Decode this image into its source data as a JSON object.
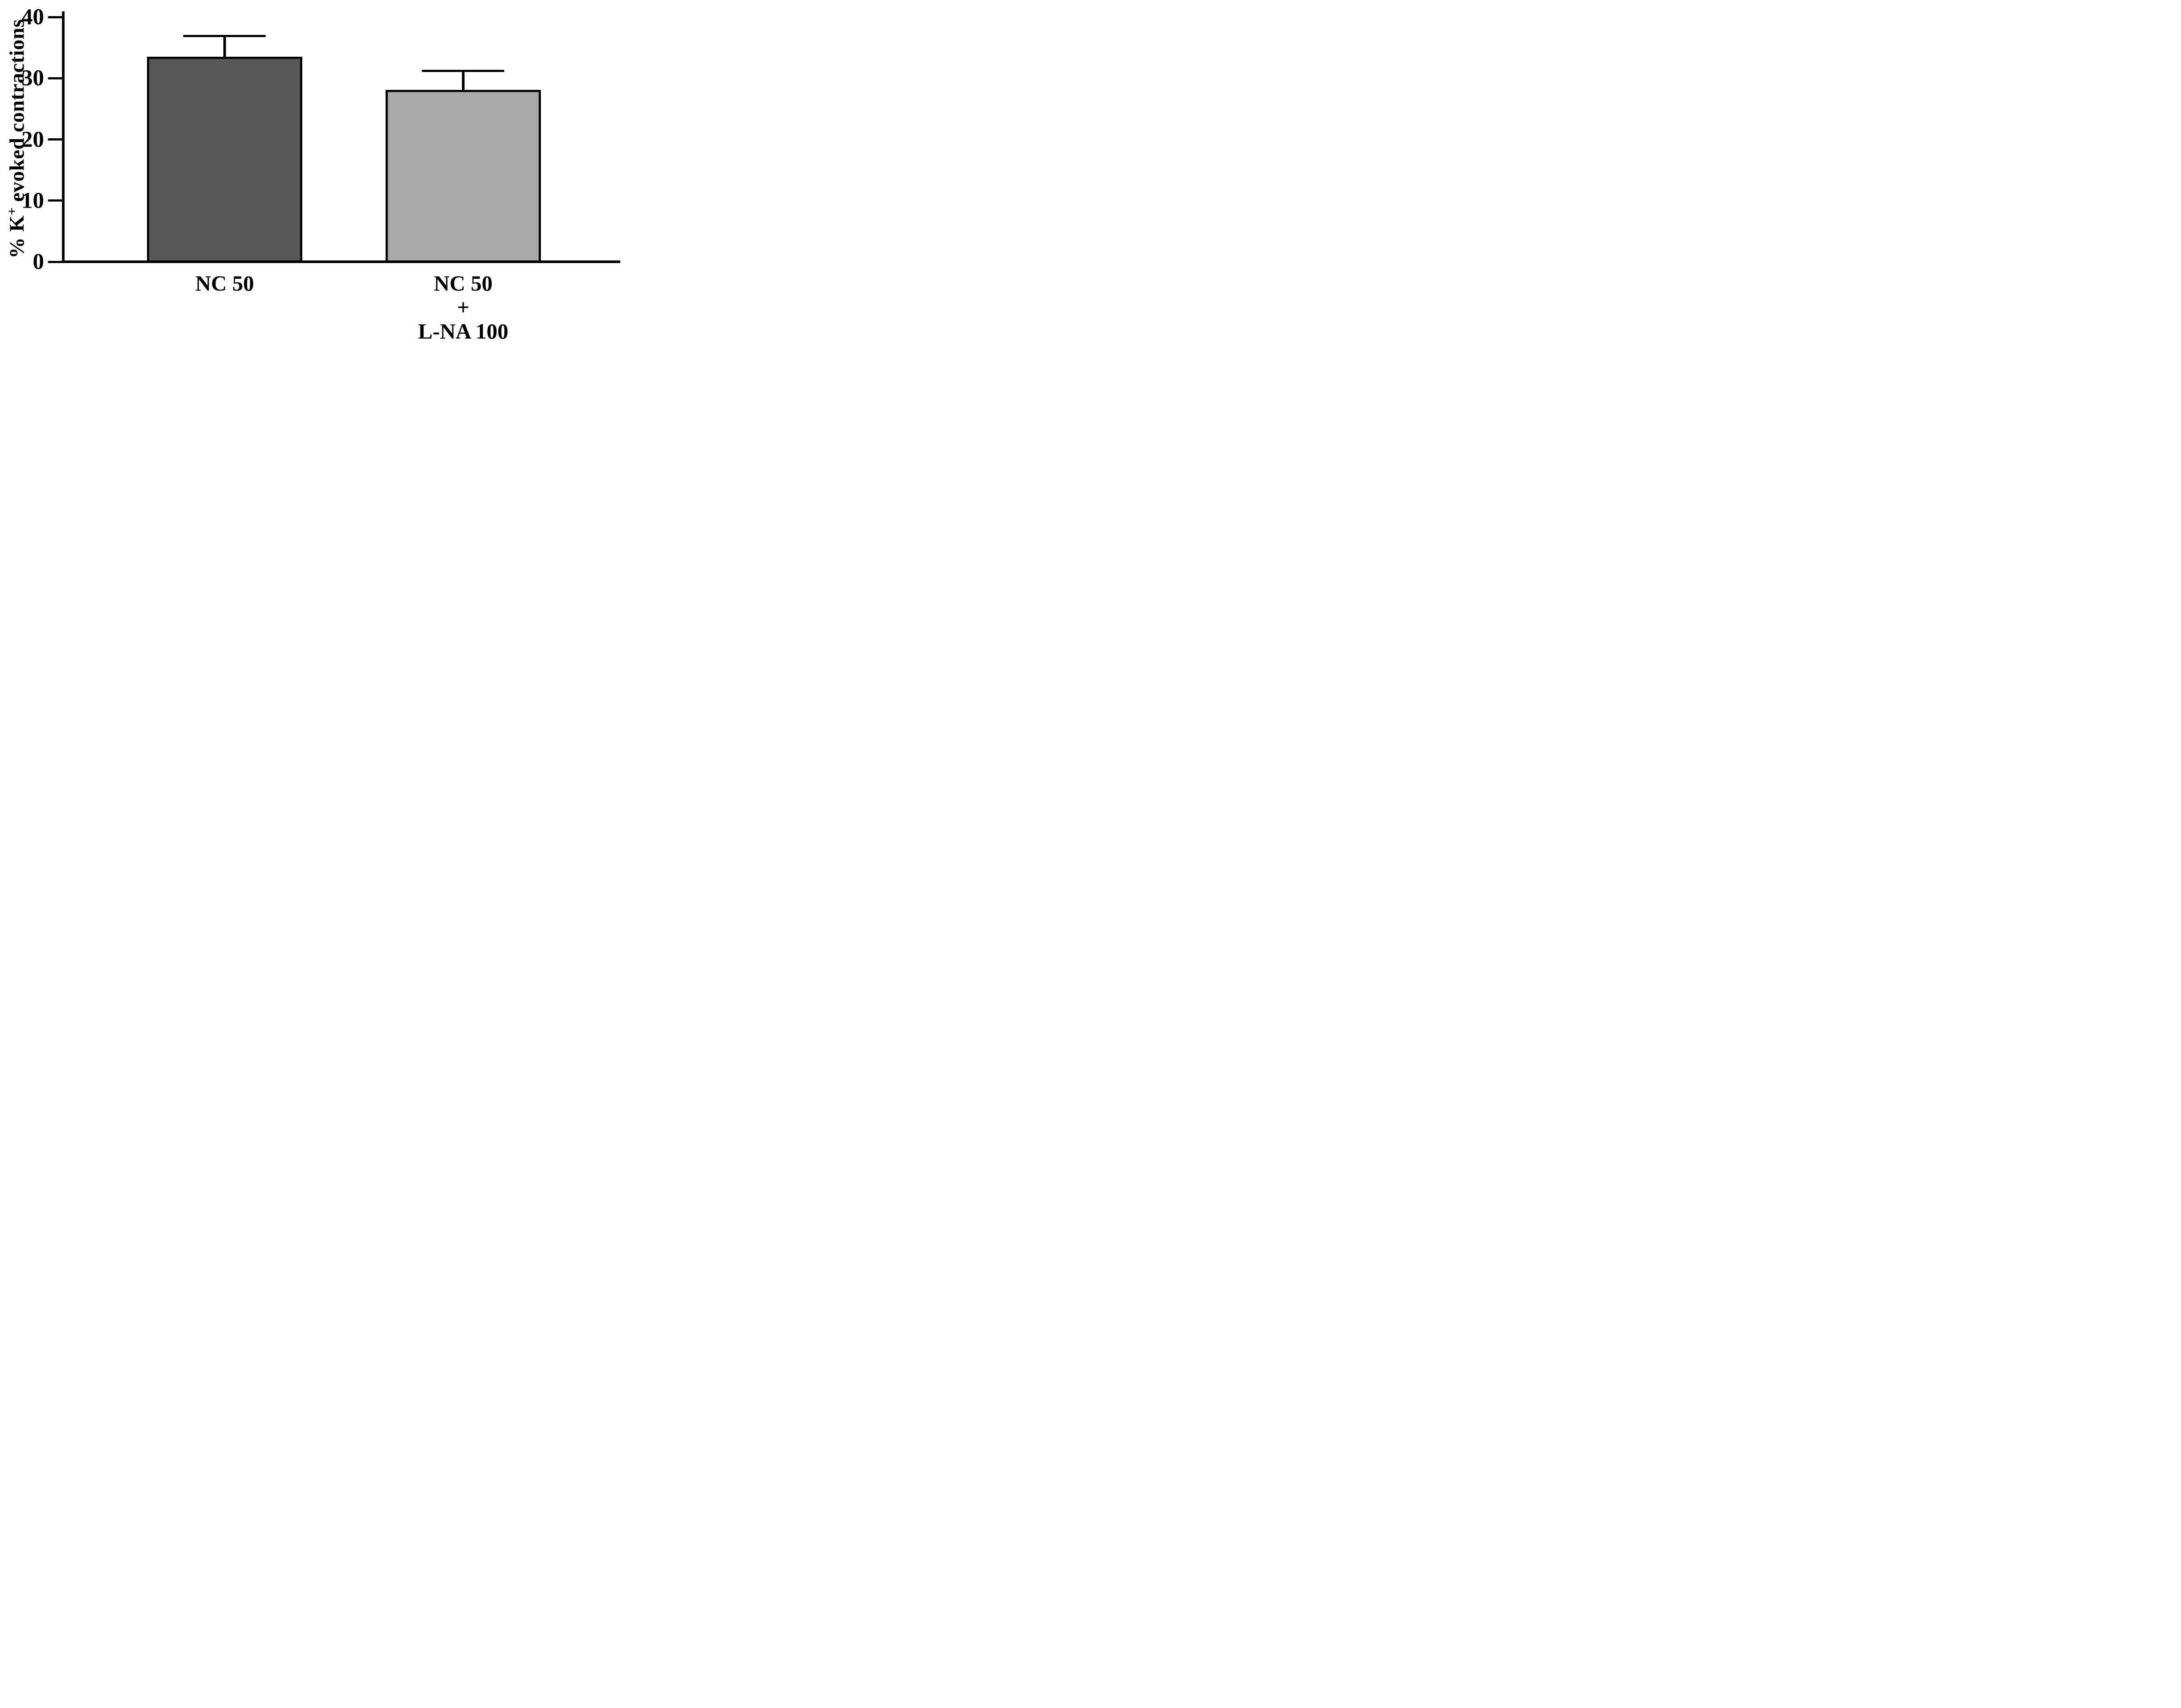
{
  "figure": {
    "background": "#ffffff"
  },
  "chart_data": {
    "type": "bar",
    "title": "",
    "xlabel": "",
    "ylabel": "% K+ evoked contractions",
    "ylabel_parts": {
      "prefix": "% K",
      "sup": "+",
      "suffix": " evoked contractions"
    },
    "categories": [
      "NC 50",
      "NC 50 + L-NA 100"
    ],
    "category_label_lines": [
      [
        "NC 50"
      ],
      [
        "NC 50",
        "+",
        "L-NA 100"
      ]
    ],
    "values": [
      33.5,
      28.1
    ],
    "errors_plus": [
      3.6,
      3.3
    ],
    "bar_colors": [
      "#575757",
      "#a8a8a8"
    ],
    "bar_border_color": "#000000",
    "axis_color": "#000000",
    "ylim": [
      0,
      40
    ],
    "yticks": [
      0,
      10,
      20,
      30,
      40
    ],
    "grid": false,
    "legend": false,
    "error_bar_direction": "up"
  }
}
